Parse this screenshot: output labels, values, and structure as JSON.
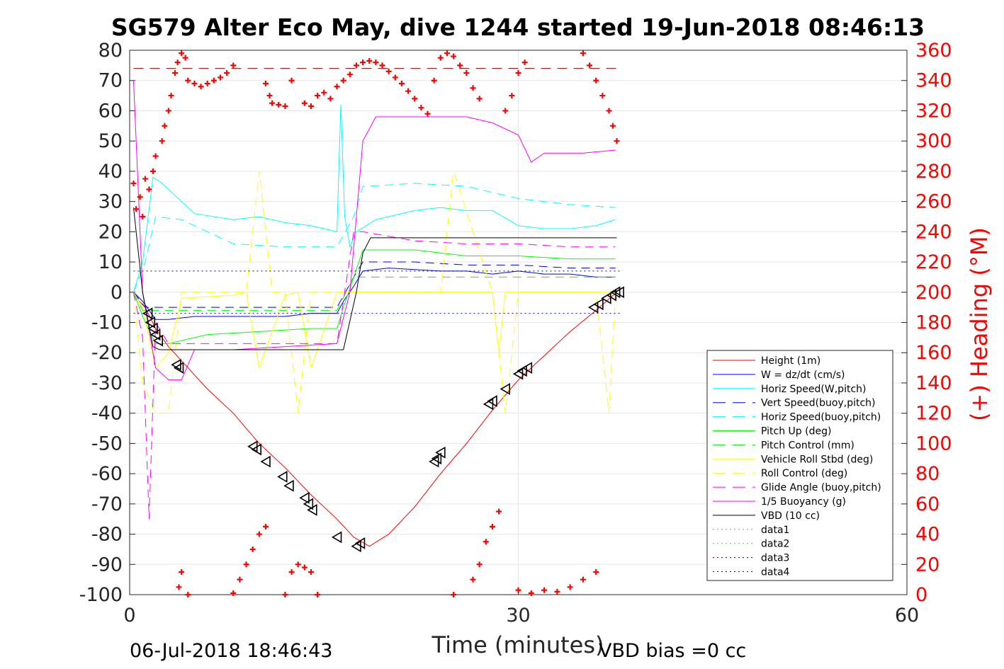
{
  "chart_data": {
    "type": "line",
    "title": "SG579 Alter Eco May, dive 1244 started 19-Jun-2018 08:46:13",
    "xlabel": "Time (minutes)",
    "ylabel_right": "(+) Heading (°M)",
    "xlim": [
      0,
      60
    ],
    "ylim_left": [
      -100,
      80
    ],
    "ylim_right": [
      0,
      360
    ],
    "x_ticks": [
      "0",
      "30",
      "60"
    ],
    "y_ticks_left": [
      "80",
      "70",
      "60",
      "50",
      "40",
      "30",
      "20",
      "10",
      "0",
      "-10",
      "-20",
      "-30",
      "-40",
      "-50",
      "-60",
      "-70",
      "-80",
      "-90",
      "-100"
    ],
    "y_ticks_right": [
      "360",
      "340",
      "320",
      "300",
      "280",
      "260",
      "240",
      "220",
      "200",
      "180",
      "160",
      "140",
      "120",
      "100",
      "80",
      "60",
      "40",
      "20",
      "0"
    ],
    "footer_left": "06-Jul-2018 18:46:43",
    "footer_right": "VBD bias =0 cc",
    "legend_position": "lower-right",
    "colors": {
      "red": "#ff0000",
      "blue": "#0000ff",
      "cyan": "#00ffff",
      "green": "#00ff00",
      "yellow": "#ffff00",
      "magenta": "#ff00ff",
      "black": "#000000",
      "navy": "#00008b"
    },
    "series": [
      {
        "name": "Height (1m)",
        "style": "solid",
        "color": "#ff0000",
        "x": [
          0.3,
          1.2,
          2.0,
          3.0,
          4.5,
          6.0,
          8.0,
          10.0,
          12.0,
          14.0,
          16.0,
          17.3,
          18.5,
          20.0,
          22.0,
          24.0,
          26.0,
          28.0,
          30.0,
          32.0,
          34.0,
          36.0,
          37.6
        ],
        "y": [
          -1,
          -5,
          -12,
          -18,
          -25,
          -32,
          -40,
          -50,
          -58,
          -67,
          -75,
          -81,
          -84,
          -80,
          -71,
          -60,
          -50,
          -39,
          -29,
          -21,
          -13,
          -6,
          0
        ]
      },
      {
        "name": "W = dz/dt (cm/s)",
        "style": "solid",
        "color": "#0000ff",
        "x": [
          0.3,
          1.0,
          2.0,
          3.0,
          5.0,
          8.0,
          10.0,
          12.0,
          14.0,
          16.0,
          16.5,
          17.3,
          18.0,
          20.0,
          24.0,
          26.0,
          28.0,
          30.0,
          32.0,
          34.0,
          36.0,
          37.5
        ],
        "y": [
          0,
          -3,
          -9,
          -9,
          -8,
          -8,
          -8,
          -8,
          -7,
          -7,
          -3,
          2,
          7,
          8,
          7,
          7,
          6,
          7,
          6,
          6,
          5,
          5
        ]
      },
      {
        "name": "Horiz Speed(W,pitch)",
        "style": "solid",
        "color": "#00ffff",
        "x": [
          0.3,
          1.0,
          1.8,
          2.5,
          3.5,
          5.0,
          8.0,
          10.0,
          12.0,
          14.0,
          16.0,
          16.3,
          16.6,
          17.0,
          17.5,
          19.0,
          22.0,
          24.0,
          26.0,
          28.0,
          30.0,
          32.0,
          34.0,
          36.0,
          37.5
        ],
        "y": [
          0,
          10,
          38,
          36,
          32,
          26,
          24,
          25,
          23,
          22,
          20,
          62,
          25,
          15,
          20,
          24,
          27,
          28,
          27,
          27,
          22,
          21,
          21,
          22,
          24
        ]
      },
      {
        "name": "Vert Speed(buoy,pitch)",
        "style": "dashed",
        "color": "#0000ff",
        "x": [
          0.3,
          1.2,
          2.0,
          4.0,
          8.0,
          12.0,
          16.0,
          17.3,
          18.0,
          22.0,
          26.0,
          30.0,
          34.0,
          37.5
        ],
        "y": [
          0,
          -5,
          -5,
          -5,
          -5,
          -5,
          -5,
          5,
          10,
          10,
          9,
          9,
          8,
          8
        ]
      },
      {
        "name": "Horiz Speed(buoy,pitch)",
        "style": "dashed",
        "color": "#00ffff",
        "x": [
          0.3,
          1.2,
          2.0,
          4.0,
          8.0,
          12.0,
          16.0,
          17.3,
          18.0,
          22.0,
          26.0,
          30.0,
          34.0,
          37.5
        ],
        "y": [
          0,
          10,
          25,
          24,
          16,
          15,
          15,
          25,
          35,
          36,
          35,
          31,
          29,
          28
        ]
      },
      {
        "name": "Pitch Up (deg)",
        "style": "solid",
        "color": "#00ff00",
        "x": [
          0.3,
          1.0,
          2.0,
          3.0,
          6.0,
          10.0,
          14.0,
          16.0,
          16.5,
          17.3,
          18.0,
          22.0,
          26.0,
          30.0,
          34.0,
          37.5
        ],
        "y": [
          0,
          -8,
          -17,
          -17,
          -14,
          -13,
          -12,
          -12,
          -5,
          5,
          14,
          14,
          12,
          12,
          11,
          11
        ]
      },
      {
        "name": "Pitch Control (mm)",
        "style": "dashed",
        "color": "#00ff00",
        "x": [
          0.3,
          1.0,
          2.0,
          4.0,
          8.0,
          12.0,
          16.0,
          17.3,
          18.0,
          22.0,
          26.0,
          30.0,
          34.0,
          37.5
        ],
        "y": [
          0,
          -6,
          -6,
          -6,
          -6,
          -6,
          -6,
          5,
          5,
          5,
          5,
          5,
          5,
          5
        ]
      },
      {
        "name": "Vehicle Roll Stbd (deg)",
        "style": "solid",
        "color": "#ffff00",
        "x": [
          0.3,
          1.0,
          2.0,
          3.0,
          4.0,
          8.0,
          9.0,
          10.0,
          12.0,
          13.0,
          14.0,
          16.0,
          18.0,
          22.0,
          24.0,
          26.0,
          28.0,
          28.5,
          29.0,
          30.0,
          34.0,
          37.5
        ],
        "y": [
          0,
          -5,
          -25,
          -20,
          -2,
          -1,
          0,
          -25,
          -1,
          0,
          -25,
          0,
          0,
          0,
          0,
          0,
          0,
          -20,
          0,
          0,
          0,
          0
        ]
      },
      {
        "name": "Roll Control (deg)",
        "style": "dashed",
        "color": "#ffff00",
        "x": [
          0.3,
          1.0,
          2.0,
          3.0,
          4.0,
          9.0,
          10.0,
          11.0,
          12.0,
          13.0,
          14.0,
          17.0,
          24.0,
          25.0,
          28.0,
          29.0,
          30.0,
          36.0,
          37.0,
          37.5
        ],
        "y": [
          0,
          -30,
          -40,
          -40,
          0,
          0,
          40,
          0,
          0,
          -40,
          0,
          0,
          0,
          40,
          0,
          -40,
          0,
          0,
          -40,
          0
        ]
      },
      {
        "name": "Glide Angle (buoy,pitch)",
        "style": "dashed",
        "color": "#ff00ff",
        "x": [
          0.3,
          1.0,
          1.5,
          2.0,
          3.0,
          6.0,
          10.0,
          14.0,
          16.0,
          17.3,
          18.0,
          22.0,
          26.0,
          30.0,
          34.0,
          37.5
        ],
        "y": [
          0,
          -15,
          -75,
          -10,
          -17,
          -17,
          -17,
          -17,
          -17,
          20,
          20,
          17,
          16,
          16,
          15,
          15
        ]
      },
      {
        "name": "1/5 Buoyancy (g)",
        "style": "solid",
        "color": "#ff00ff",
        "x": [
          0.3,
          1.0,
          2.0,
          3.0,
          4.0,
          5.0,
          8.0,
          12.0,
          16.0,
          17.0,
          18.0,
          19.0,
          22.0,
          26.0,
          28.0,
          30.0,
          31.0,
          32.0,
          35.0,
          37.5
        ],
        "y": [
          70,
          0,
          -25,
          -29,
          -29,
          -19,
          -19,
          -18,
          -17,
          0,
          50,
          58,
          58,
          58,
          56,
          52,
          43,
          46,
          46,
          47
        ]
      },
      {
        "name": "VBD (10 cc)",
        "style": "solid",
        "color": "#000000",
        "x": [
          0.3,
          1.0,
          1.8,
          2.3,
          4.0,
          8.0,
          12.0,
          16.0,
          16.5,
          17.5,
          18.0,
          18.6,
          22.0,
          26.0,
          30.0,
          34.0,
          37.6
        ],
        "y": [
          28,
          0,
          -18,
          -19,
          -19,
          -19,
          -19,
          -19,
          -19,
          0,
          13,
          18,
          18,
          18,
          18,
          18,
          18
        ]
      },
      {
        "name": "data1",
        "style": "dotted",
        "color": "#00ff00",
        "x": [],
        "y": []
      },
      {
        "name": "data2",
        "style": "dotted",
        "color": "#00ff00",
        "x": [],
        "y": []
      },
      {
        "name": "data3",
        "style": "dotted",
        "color": "#00008b",
        "x": [
          0.3,
          38
        ],
        "y": [
          7,
          7
        ]
      },
      {
        "name": "data4",
        "style": "dotted",
        "color": "#0000ff",
        "x": [
          0.3,
          38
        ],
        "y": [
          -7,
          -7
        ]
      }
    ],
    "reference_line": {
      "style": "dashed",
      "color": "#8b0000",
      "x": [
        0.3,
        38
      ],
      "y": [
        74,
        74
      ]
    },
    "heading_points": {
      "x": [
        0.3,
        0.5,
        0.8,
        1.0,
        1.2,
        1.5,
        1.8,
        2.0,
        2.5,
        2.7,
        3.0,
        3.2,
        3.5,
        3.7,
        4.0,
        4.3,
        4.5,
        5.0,
        5.5,
        6.0,
        6.5,
        7.0,
        7.5,
        8.0,
        10.5,
        10.8,
        11.0,
        11.5,
        12.0,
        12.5,
        13.5,
        14.0,
        14.5,
        15.0,
        15.5,
        16.0,
        16.5,
        17.0,
        17.5,
        18.0,
        18.5,
        19.0,
        19.5,
        20.0,
        20.5,
        21.0,
        21.5,
        22.0,
        22.5,
        23.0,
        23.5,
        24.0,
        24.5,
        25.0,
        25.5,
        26.0,
        26.5,
        27.0,
        29.0,
        29.5,
        30.0,
        30.5,
        35.0,
        35.5,
        36.0,
        36.5,
        37.0,
        37.3,
        37.6,
        3.8,
        4.0,
        4.5,
        8.0,
        8.5,
        9.0,
        9.5,
        10.0,
        10.5,
        12.0,
        12.5,
        13.0,
        13.5,
        14.0,
        14.5,
        25.0,
        26.5,
        27.0,
        27.5,
        28.0,
        28.5,
        30.0,
        31.0,
        32.0,
        33.0,
        34.0,
        35.0,
        36.0
      ],
      "y": [
        272,
        255,
        263,
        250,
        275,
        268,
        280,
        290,
        300,
        310,
        320,
        330,
        345,
        352,
        358,
        355,
        340,
        338,
        336,
        338,
        340,
        342,
        345,
        350,
        338,
        330,
        325,
        324,
        323,
        340,
        325,
        323,
        330,
        332,
        328,
        336,
        340,
        344,
        350,
        352,
        353,
        352,
        350,
        346,
        342,
        338,
        333,
        328,
        322,
        318,
        340,
        355,
        358,
        356,
        350,
        345,
        335,
        328,
        320,
        330,
        345,
        352,
        358,
        350,
        340,
        330,
        320,
        310,
        300,
        5,
        15,
        0,
        1,
        10,
        20,
        30,
        40,
        45,
        0,
        15,
        20,
        18,
        15,
        0,
        0,
        10,
        20,
        35,
        45,
        55,
        3,
        1,
        3,
        2,
        5,
        10,
        15
      ]
    },
    "markers": {
      "x": [
        1.4,
        1.6,
        1.8,
        2.0,
        2.2,
        3.6,
        3.8,
        9.5,
        9.8,
        10.5,
        11.8,
        12.3,
        13.5,
        13.8,
        14.1,
        16.0,
        17.5,
        17.8,
        23.5,
        23.7,
        24.0,
        27.7,
        28.0,
        29.0,
        30.0,
        30.3,
        30.7,
        35.8,
        36.2,
        36.8,
        37.2,
        37.5,
        37.8
      ],
      "y": [
        -7,
        -10,
        -12,
        -14,
        -16,
        -24,
        -25,
        -51,
        -52,
        -56,
        -61,
        -64,
        -68,
        -70,
        -72,
        -81,
        -84,
        -83,
        -56,
        -55,
        -53,
        -37,
        -36,
        -32,
        -27,
        -26,
        -25,
        -5,
        -4,
        -2,
        -1,
        0,
        0
      ]
    }
  }
}
